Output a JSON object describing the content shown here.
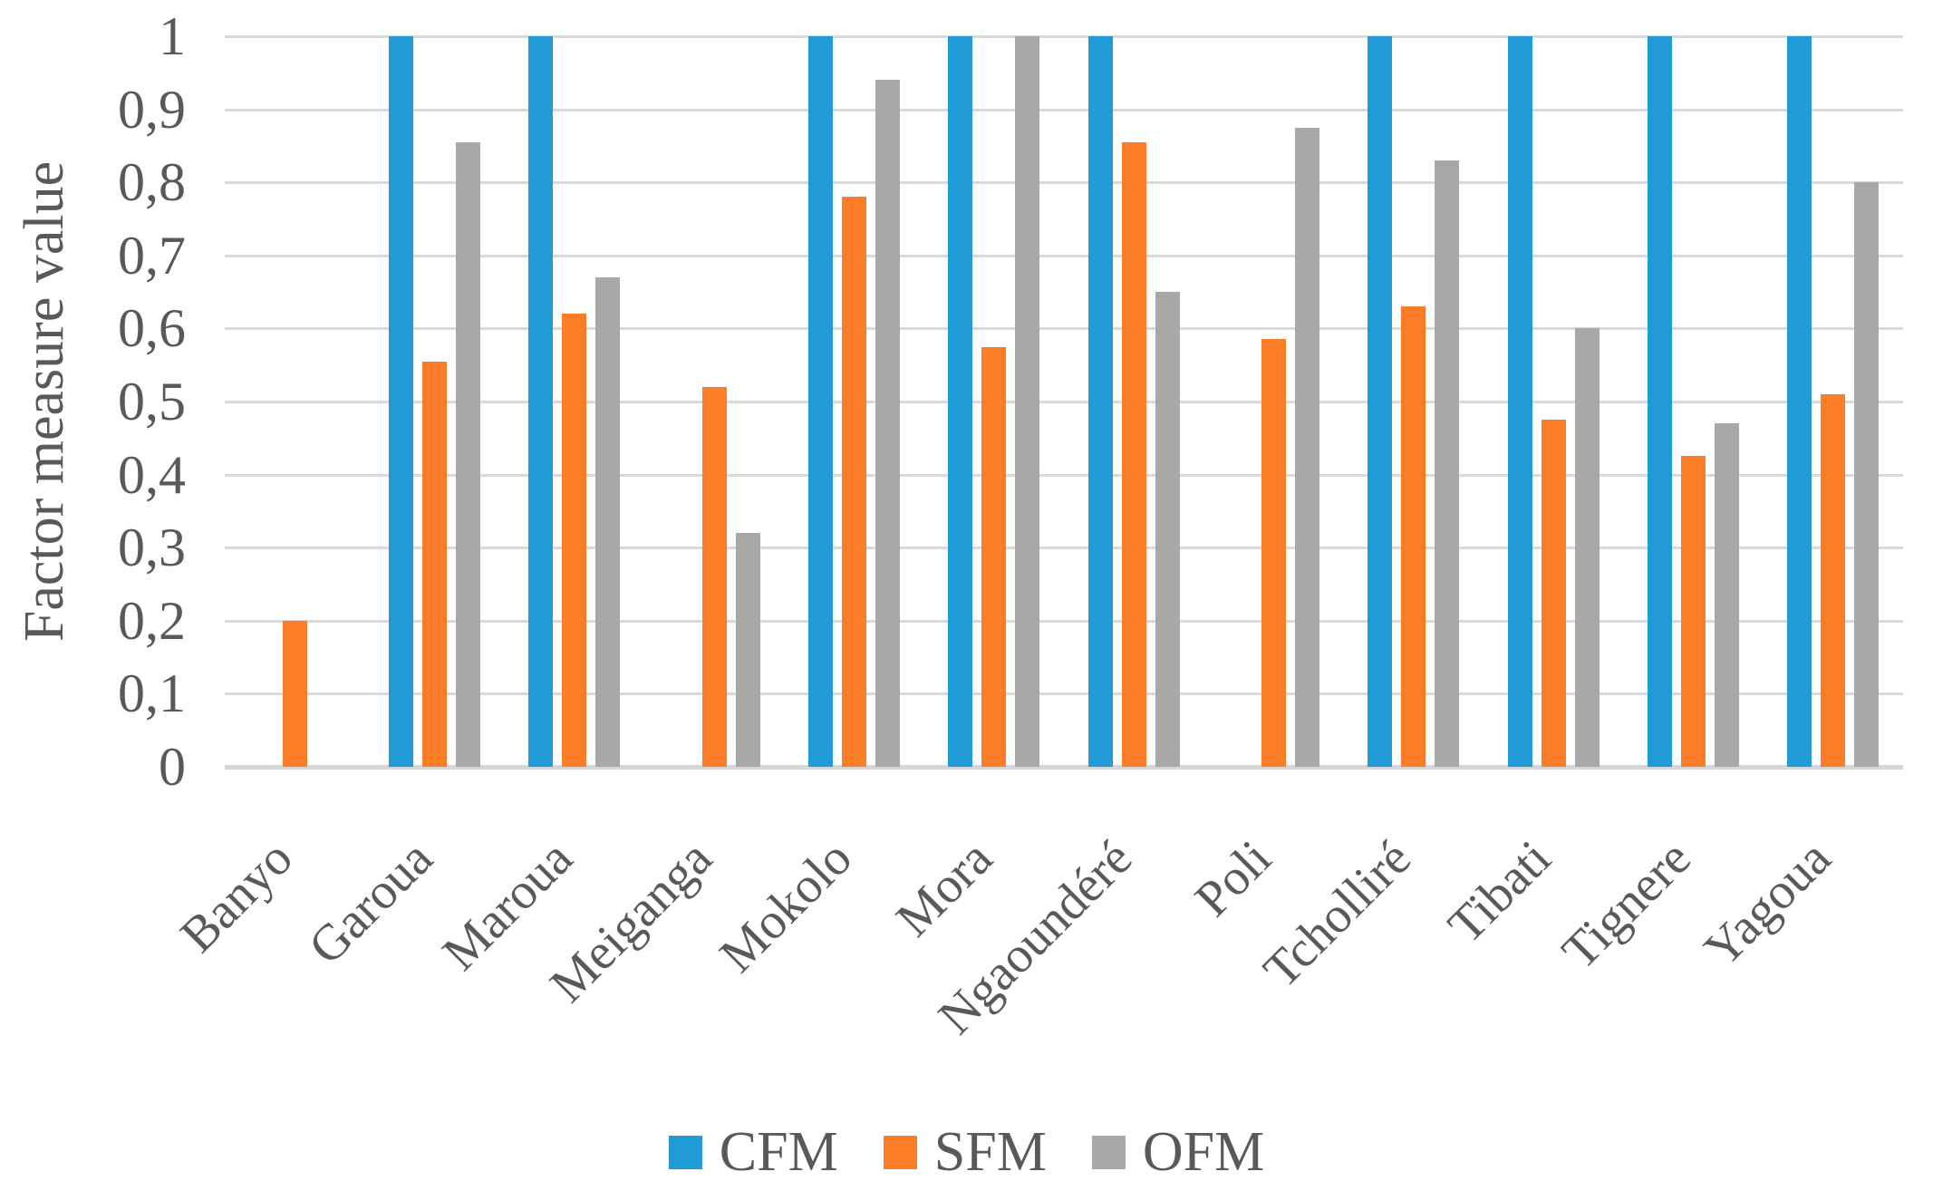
{
  "chart_data": {
    "type": "bar",
    "title": "",
    "xlabel": "",
    "ylabel": "Factor measure value",
    "ylim": [
      0,
      1
    ],
    "ytick_step": 0.1,
    "decimal_separator": ",",
    "ytick_labels": [
      "0",
      "0,1",
      "0,2",
      "0,3",
      "0,4",
      "0,5",
      "0,6",
      "0,7",
      "0,8",
      "0,9",
      "1"
    ],
    "grid": true,
    "legend_position": "bottom",
    "categories": [
      "Banyo",
      "Garoua",
      "Maroua",
      "Meiganga",
      "Mokolo",
      "Mora",
      "Ngaoundéré",
      "Poli",
      "Tcholliré",
      "Tibati",
      "Tignere",
      "Yagoua"
    ],
    "series": [
      {
        "name": "CFM",
        "color": "#209BD8",
        "values": [
          0,
          1,
          1,
          0,
          1,
          1,
          1,
          0,
          1,
          1,
          1,
          1
        ]
      },
      {
        "name": "SFM",
        "color": "#FB7D28",
        "values": [
          0.2,
          0.555,
          0.62,
          0.52,
          0.78,
          0.575,
          0.855,
          0.585,
          0.63,
          0.475,
          0.425,
          0.51
        ]
      },
      {
        "name": "OFM",
        "color": "#A8A8A8",
        "values": [
          0,
          0.855,
          0.67,
          0.32,
          0.94,
          1,
          0.65,
          0.875,
          0.83,
          0.6,
          0.47,
          0.8
        ]
      }
    ]
  },
  "styles": {
    "text_color": "#595959",
    "gridline_color": "#D9D9D9",
    "baseline_color": "#D6D6D6",
    "background": "#FFFFFF"
  }
}
